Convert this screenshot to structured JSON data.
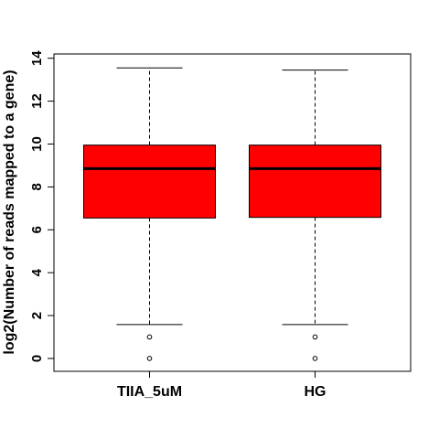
{
  "chart_data": {
    "type": "boxplot",
    "title": "",
    "xlabel": "",
    "ylabel": "log2(Number of reads mapped to a gene)",
    "ylim": [
      -0.6,
      14.2
    ],
    "yticks": [
      0,
      2,
      4,
      6,
      8,
      10,
      12,
      14
    ],
    "categories": [
      "TIIA_5uM",
      "HG"
    ],
    "box_color": "#ff0000",
    "grid": false,
    "legend": "none",
    "series": [
      {
        "q1": 6.55,
        "median": 8.85,
        "q3": 9.95,
        "whisker_low": 1.58,
        "whisker_high": 13.55,
        "outliers": [
          1.0,
          0.0
        ]
      },
      {
        "q1": 6.58,
        "median": 8.85,
        "q3": 9.95,
        "whisker_low": 1.58,
        "whisker_high": 13.45,
        "outliers": [
          1.0,
          0.0
        ]
      }
    ]
  }
}
